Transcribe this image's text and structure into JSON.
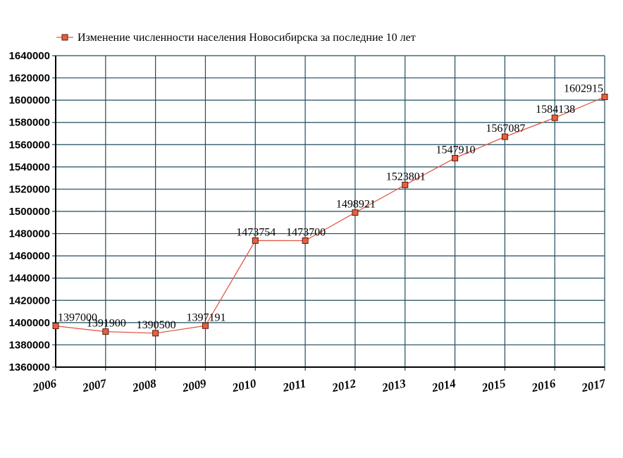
{
  "chart_data": {
    "type": "line",
    "title": "",
    "xlabel": "",
    "ylabel": "",
    "x": [
      "2006",
      "2007",
      "2008",
      "2009",
      "2010",
      "2011",
      "2012",
      "2013",
      "2014",
      "2015",
      "2016",
      "2017"
    ],
    "x_values": [
      2006,
      2007,
      2008,
      2009,
      2010,
      2011,
      2012,
      2013,
      2014,
      2015,
      2016,
      2017
    ],
    "series": [
      {
        "name": "Изменение численности населения Новосибирска за последние 10 лет",
        "values": [
          1397000,
          1391900,
          1390500,
          1397191,
          1473754,
          1473700,
          1498921,
          1523801,
          1547910,
          1567087,
          1584138,
          1602915
        ],
        "labels": [
          "1397000",
          "1391900",
          "1390500",
          "1397191",
          "1473754",
          "1473700",
          "1498921",
          "1523801",
          "1547910",
          "1567087",
          "1584138",
          "1602915"
        ],
        "line_color": "#e05a48",
        "marker_fill": "#e8603c",
        "marker_stroke": "#5a1a10"
      }
    ],
    "ylim": [
      1360000,
      1640000
    ],
    "xlim": [
      2006,
      2017
    ],
    "y_ticks": [
      "1360000",
      "1380000",
      "1400000",
      "1420000",
      "1440000",
      "1460000",
      "1480000",
      "1500000",
      "1520000",
      "1540000",
      "1560000",
      "1580000",
      "1600000",
      "1620000",
      "1640000"
    ],
    "y_tick_values": [
      1360000,
      1380000,
      1400000,
      1420000,
      1440000,
      1460000,
      1480000,
      1500000,
      1520000,
      1540000,
      1560000,
      1580000,
      1600000,
      1620000,
      1640000
    ],
    "grid": true,
    "grid_color": "#1f4d5c",
    "legend_position": "top-left"
  }
}
